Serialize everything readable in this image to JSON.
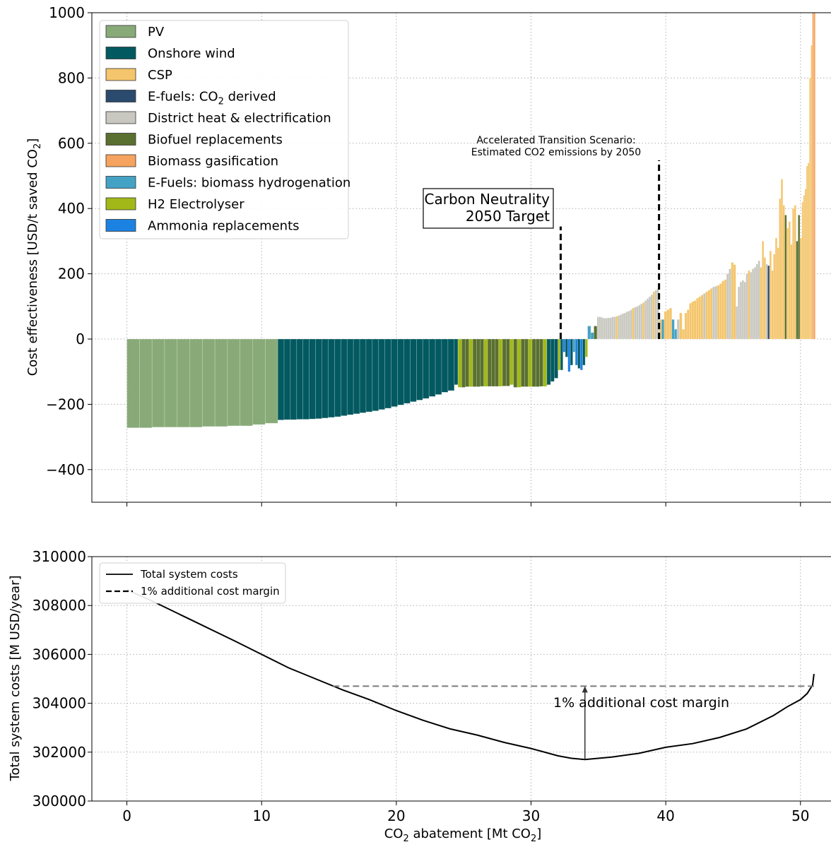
{
  "chart_data": [
    {
      "type": "bar",
      "ylabel": "Cost effectiveness [USD/t saved CO2]",
      "ylim": [
        -500,
        1000
      ],
      "xlim": [
        -2.6,
        53
      ],
      "yticks": [
        "1000",
        "800",
        "600",
        "400",
        "200",
        "0",
        "−200",
        "−400"
      ],
      "grid": true,
      "legend_placement": "top-left",
      "colors": {
        "PV": "#88aa78",
        "Onshore wind": "#035960",
        "CSP": "#f4c56b",
        "E-fuels: CO2 derived": "#2a4a6e",
        "District heat & electrification": "#c8c8c0",
        "Biofuel replacements": "#5a7030",
        "Biomass gasification": "#f5a35e",
        "E-Fuels: biomass hydrogenation": "#44a2c4",
        "H2 Electrolyser": "#a2b818",
        "Ammonia replacements": "#1c82e2"
      },
      "legend": [
        {
          "name": "PV",
          "sub": "",
          "post": ""
        },
        {
          "name": "Onshore wind",
          "sub": "",
          "post": ""
        },
        {
          "name": "CSP",
          "sub": "",
          "post": ""
        },
        {
          "name": "E-fuels: CO",
          "sub": "2",
          "post": " derived",
          "key": "E-fuels: CO2 derived"
        },
        {
          "name": "District heat & electrification",
          "sub": "",
          "post": ""
        },
        {
          "name": "Biofuel replacements",
          "sub": "",
          "post": ""
        },
        {
          "name": "Biomass gasification",
          "sub": "",
          "post": ""
        },
        {
          "name": "E-Fuels: biomass hydrogenation",
          "sub": "",
          "post": ""
        },
        {
          "name": "H2 Electrolyser",
          "sub": "",
          "post": ""
        },
        {
          "name": "Ammonia replacements",
          "sub": "",
          "post": ""
        }
      ],
      "segments": [
        {
          "tech": "PV",
          "x0": 0.0,
          "x1": 11.2,
          "n": 12,
          "y": [
            -272,
            -272,
            -270,
            -270,
            -270,
            -270,
            -268,
            -268,
            -266,
            -266,
            -262,
            -258
          ]
        },
        {
          "tech": "Onshore wind",
          "x0": 11.2,
          "x1": 24.3,
          "n": 28,
          "y": [
            -248,
            -247,
            -247,
            -246,
            -246,
            -245,
            -244,
            -242,
            -240,
            -238,
            -235,
            -232,
            -229,
            -226,
            -223,
            -220,
            -216,
            -212,
            -207,
            -202,
            -197,
            -192,
            -187,
            -182,
            -176,
            -170,
            -163,
            -158
          ]
        },
        {
          "tech": "mixed",
          "x0": 24.3,
          "x1": 32.0,
          "colors": [
            "#035960",
            "#a2b818",
            "#5a7030",
            "#5a7030",
            "#a2b818",
            "#5a7030",
            "#5a7030",
            "#5a7030",
            "#a2b818",
            "#5a7030",
            "#5a7030",
            "#5a7030",
            "#a2b818",
            "#5a7030",
            "#5a7030",
            "#a2b818",
            "#5a7030",
            "#a2b818",
            "#5a7030",
            "#5a7030",
            "#a2b818",
            "#5a7030",
            "#5a7030",
            "#5a7030",
            "#a2b818",
            "#035960",
            "#035960",
            "#035960"
          ],
          "y": [
            -140,
            -148,
            -148,
            -146,
            -146,
            -146,
            -146,
            -145,
            -145,
            -145,
            -145,
            -145,
            -145,
            -144,
            -144,
            -140,
            -148,
            -148,
            -146,
            -146,
            -146,
            -146,
            -146,
            -145,
            -145,
            -140,
            -130,
            -120
          ]
        },
        {
          "tech": "mixed",
          "x0": 32.0,
          "x1": 34.2,
          "colors": [
            "#a2b818",
            "#035960",
            "#1c82e2",
            "#035960",
            "#1c82e2",
            "#035960",
            "#44a2c4",
            "#1c82e2",
            "#035960",
            "#1c82e2",
            "#035960",
            "#a2b818"
          ],
          "y": [
            -95,
            -95,
            -40,
            -55,
            -100,
            -80,
            -40,
            -80,
            -90,
            -95,
            -80,
            -55
          ]
        },
        {
          "tech": "mixed",
          "x0": 34.2,
          "x1": 34.9,
          "colors": [
            "#44a2c4",
            "#44a2c4",
            "#5a7030"
          ],
          "y": [
            40,
            20,
            40
          ]
        },
        {
          "tech": "District heat & electrification",
          "x0": 34.9,
          "x1": 39.5,
          "n": 30,
          "y": [
            68,
            68,
            66,
            64,
            64,
            65,
            65,
            68,
            68,
            70,
            72,
            75,
            78,
            80,
            84,
            86,
            90,
            95,
            98,
            100,
            104,
            108,
            112,
            118,
            124,
            130,
            136,
            145,
            150,
            155
          ],
          "overrides": {
            "9": "#f4c56b",
            "17": "#f4c56b",
            "22": "#f4c56b",
            "27": "#f4c56b"
          }
        },
        {
          "tech": "mixed",
          "x0": 39.5,
          "x1": 41.4,
          "colors": [
            "#f4c56b",
            "#44a2c4",
            "#f4c56b",
            "#f4c56b",
            "#f4c56b",
            "#44a2c4",
            "#44a2c4",
            "#c8c8c0",
            "#f4c56b",
            "#f4c56b"
          ],
          "y": [
            60,
            60,
            85,
            90,
            95,
            60,
            30,
            60,
            80,
            30
          ]
        },
        {
          "tech": "mixed",
          "x0": 41.4,
          "x1": 45.2,
          "colors": [
            "#f4c56b",
            "#f4c56b",
            "#f4c56b",
            "#f4c56b",
            "#f4c56b",
            "#f4c56b",
            "#f4c56b",
            "#f4c56b",
            "#c8c8c0",
            "#f4c56b",
            "#f4c56b",
            "#f4c56b",
            "#c8c8c0",
            "#c8c8c0",
            "#f4c56b",
            "#f4c56b",
            "#f4c56b",
            "#f4c56b",
            "#c8c8c0",
            "#c8c8c0",
            "#f4c56b",
            "#f4c56b"
          ],
          "y": [
            80,
            90,
            110,
            115,
            118,
            125,
            130,
            135,
            140,
            145,
            150,
            155,
            160,
            162,
            165,
            170,
            178,
            182,
            200,
            215,
            235,
            228
          ]
        },
        {
          "tech": "mixed",
          "x0": 45.2,
          "x1": 47.0,
          "colors": [
            "#c8c8c0",
            "#c8c8c0",
            "#c8c8c0",
            "#c8c8c0",
            "#c8c8c0",
            "#c8c8c0",
            "#f4c56b",
            "#c8c8c0",
            "#c8c8c0",
            "#c8c8c0",
            "#c8c8c0",
            "#c8c8c0"
          ],
          "y": [
            100,
            160,
            175,
            180,
            175,
            200,
            210,
            205,
            215,
            220,
            230,
            240
          ]
        },
        {
          "tech": "mixed",
          "x0": 47.0,
          "x1": 50.1,
          "colors": [
            "#f4c56b",
            "#f4c56b",
            "#f4c56b",
            "#c8c8c0",
            "#2a4a6e",
            "#f4c56b",
            "#f4c56b",
            "#f4c56b",
            "#f4c56b",
            "#f4c56b",
            "#f4c56b",
            "#f4c56b",
            "#f4c56b",
            "#5a7030",
            "#f4c56b",
            "#f4c56b",
            "#f4c56b",
            "#f4c56b",
            "#f4c56b",
            "#5a7030",
            "#5a7030",
            "#f4c56b"
          ],
          "y": [
            220,
            300,
            250,
            230,
            225,
            270,
            210,
            260,
            310,
            280,
            430,
            490,
            410,
            380,
            340,
            360,
            290,
            400,
            410,
            300,
            380,
            310
          ]
        },
        {
          "tech": "mixed",
          "x0": 50.1,
          "x1": 51.1,
          "colors": [
            "#f4c56b",
            "#f4c56b",
            "#f4c56b",
            "#f4c56b",
            "#f4c56b",
            "#f4c56b",
            "#f4c56b",
            "#f5a35e",
            "#f5a35e"
          ],
          "y": [
            420,
            440,
            460,
            530,
            540,
            800,
            900,
            1000,
            1000
          ]
        }
      ],
      "annotations": {
        "carbon_neutrality": {
          "lines": [
            "Carbon Neutrality",
            "2050 Target"
          ],
          "x": 32.2,
          "y_bottom": 0,
          "y_top": 345
        },
        "accelerated": {
          "lines": [
            "Accelerated Transition Scenario:",
            "Estimated CO2 emissions by 2050"
          ],
          "x": 39.5,
          "y_bottom": 0,
          "y_top": 548
        }
      }
    },
    {
      "type": "line",
      "ylabel": "Total system costs [M USD/year]",
      "xlabel_parts": {
        "pre": "CO",
        "sub": "2",
        "mid": " abatement [Mt CO",
        "sub2": "2",
        "post": "]"
      },
      "ylim": [
        300000,
        310000
      ],
      "xlim": [
        -2.6,
        53
      ],
      "xticks": [
        "0",
        "10",
        "20",
        "30",
        "40",
        "50"
      ],
      "yticks": [
        "310000",
        "308000",
        "306000",
        "304000",
        "302000",
        "300000"
      ],
      "grid": true,
      "legend_placement": "top-left",
      "series": [
        {
          "name": "Total system costs",
          "style": "solid",
          "points": [
            [
              0,
              308650
            ],
            [
              2,
              308150
            ],
            [
              5,
              307350
            ],
            [
              8,
              306550
            ],
            [
              10,
              306000
            ],
            [
              12,
              305450
            ],
            [
              14,
              305000
            ],
            [
              16,
              304550
            ],
            [
              18,
              304150
            ],
            [
              20,
              303700
            ],
            [
              22,
              303300
            ],
            [
              24,
              302950
            ],
            [
              26,
              302700
            ],
            [
              28,
              302400
            ],
            [
              30,
              302150
            ],
            [
              32,
              301850
            ],
            [
              33,
              301750
            ],
            [
              34,
              301700
            ],
            [
              35,
              301750
            ],
            [
              36,
              301800
            ],
            [
              38,
              301950
            ],
            [
              40,
              302200
            ],
            [
              42,
              302350
            ],
            [
              44,
              302600
            ],
            [
              46,
              302950
            ],
            [
              48,
              303500
            ],
            [
              49,
              303850
            ],
            [
              50,
              304150
            ],
            [
              50.5,
              304400
            ],
            [
              50.9,
              304750
            ],
            [
              51.0,
              305200
            ]
          ]
        },
        {
          "name": "1% additional cost margin",
          "style": "dashed",
          "points": [
            [
              15.3,
              304700
            ],
            [
              51.0,
              304700
            ]
          ]
        }
      ],
      "annotations": {
        "margin": {
          "label": "1% additional cost margin",
          "x": 34.0,
          "y_from": 301700,
          "y_to": 304700
        }
      }
    }
  ]
}
